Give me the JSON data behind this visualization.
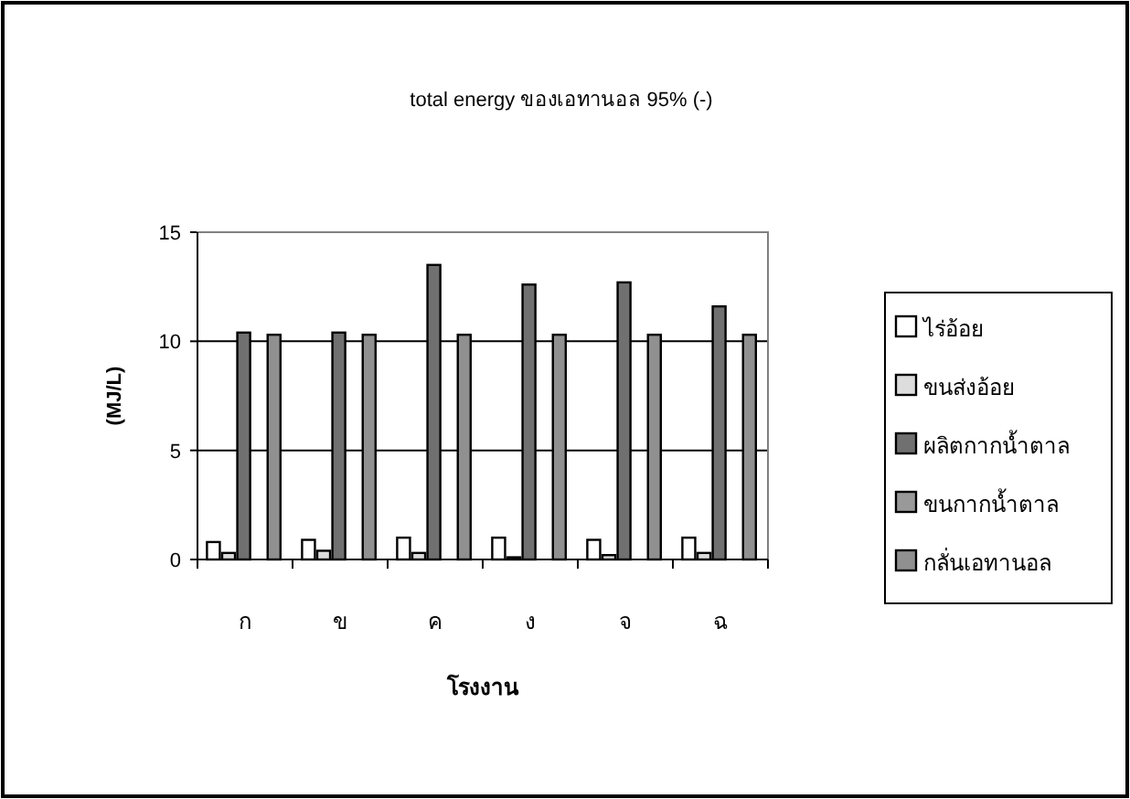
{
  "chart_data": {
    "type": "bar",
    "title": "total energy ของเอทานอล 95% (-)",
    "xlabel": "โรงงาน",
    "ylabel": "(MJ/L)",
    "categories": [
      "ก",
      "ข",
      "ค",
      "ง",
      "จ",
      "ฉ"
    ],
    "series": [
      {
        "name": "ไร่อ้อย",
        "color": "#ffffff",
        "values": [
          0.8,
          0.9,
          1.0,
          1.0,
          0.9,
          1.0
        ]
      },
      {
        "name": "ขนส่งอ้อย",
        "color": "#dddddd",
        "values": [
          0.3,
          0.4,
          0.3,
          0.1,
          0.2,
          0.3
        ]
      },
      {
        "name": "ผลิตกากน้ำตาล",
        "color": "#707070",
        "values": [
          10.4,
          10.4,
          13.5,
          12.6,
          12.7,
          11.6
        ]
      },
      {
        "name": "ขนกากน้ำตาล",
        "color": "#999999",
        "values": [
          0,
          0,
          0,
          0,
          0,
          0
        ]
      },
      {
        "name": "กลั่นเอทานอล",
        "color": "#909090",
        "values": [
          10.3,
          10.3,
          10.3,
          10.3,
          10.3,
          10.3
        ]
      }
    ],
    "ylim": [
      0,
      15
    ],
    "yticks": [
      0,
      5,
      10,
      15
    ],
    "grid": "y",
    "legend": "right"
  }
}
